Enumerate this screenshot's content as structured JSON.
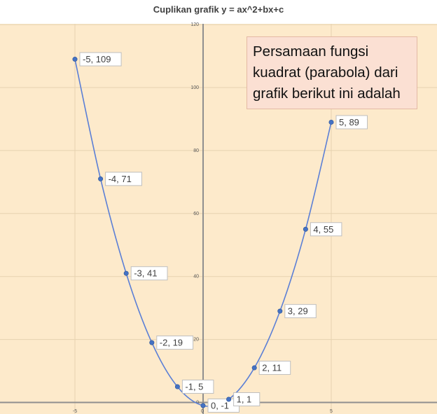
{
  "chart_data": {
    "type": "scatter",
    "title": "Cuplikan grafik y = ax^2+bx+c",
    "xlim": [
      -5.5,
      5.5
    ],
    "ylim": [
      -3,
      120
    ],
    "y_ticks": [
      120,
      100,
      80,
      60,
      40,
      20,
      0
    ],
    "x_ticks": [
      -5,
      0,
      5
    ],
    "grid": true,
    "smooth_line": true,
    "colors": {
      "plot_bg": "#fdeacb",
      "line": "#5b7fd6",
      "point": "#4472c4",
      "grid": "#e6d2b0",
      "axis": "#8f8f8f"
    },
    "points": [
      {
        "x": -5,
        "y": 109,
        "label": "-5, 109"
      },
      {
        "x": -4,
        "y": 71,
        "label": "-4, 71"
      },
      {
        "x": -3,
        "y": 41,
        "label": "-3, 41"
      },
      {
        "x": -2,
        "y": 19,
        "label": "-2, 19"
      },
      {
        "x": -1,
        "y": 5,
        "label": "-1, 5"
      },
      {
        "x": 0,
        "y": -1,
        "label": "0, -1"
      },
      {
        "x": 1,
        "y": 1,
        "label": "1, 1"
      },
      {
        "x": 2,
        "y": 11,
        "label": "2, 11"
      },
      {
        "x": 3,
        "y": 29,
        "label": "3, 29"
      },
      {
        "x": 4,
        "y": 55,
        "label": "4, 55"
      },
      {
        "x": 5,
        "y": 89,
        "label": "5, 89"
      }
    ]
  },
  "callout": {
    "text": "Persamaan fungsi\nkuadrat (parabola) dari\ngrafik berikut ini adalah"
  }
}
